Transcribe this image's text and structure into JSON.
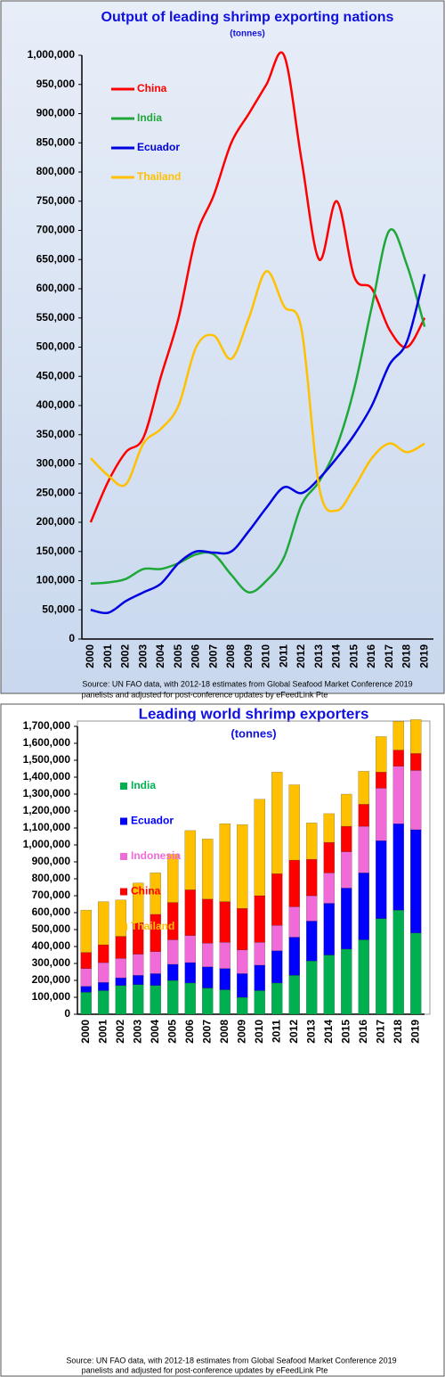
{
  "chart_data": [
    {
      "type": "line",
      "title": "Output of leading shrimp exporting nations",
      "subtitle": "(tonnes)",
      "source": [
        "Source: UN FAO data, with 2012-18 estimates from Global Seafood Market Conference 2019",
        "panelists and adjusted for post-conference updates by eFeedLink Pte"
      ],
      "categories": [
        "2000",
        "2001",
        "2002",
        "2003",
        "2004",
        "2005",
        "2006",
        "2007",
        "2008",
        "2009",
        "2010",
        "2011",
        "2012",
        "2013",
        "2014",
        "2015",
        "2016",
        "2017",
        "2018",
        "2019"
      ],
      "series": [
        {
          "name": "China",
          "color": "#ff0000",
          "values": [
            200000,
            270000,
            320000,
            345000,
            450000,
            550000,
            690000,
            760000,
            850000,
            900000,
            950000,
            1000000,
            820000,
            650000,
            750000,
            620000,
            600000,
            530000,
            500000,
            550000
          ]
        },
        {
          "name": "India",
          "color": "#1fa83a",
          "values": [
            95000,
            97000,
            103000,
            120000,
            120000,
            130000,
            145000,
            145000,
            110000,
            80000,
            100000,
            140000,
            230000,
            270000,
            330000,
            430000,
            570000,
            700000,
            640000,
            535000
          ]
        },
        {
          "name": "Ecuador",
          "color": "#0000e0",
          "values": [
            50000,
            45000,
            65000,
            80000,
            95000,
            130000,
            150000,
            148000,
            150000,
            185000,
            225000,
            260000,
            250000,
            275000,
            310000,
            350000,
            400000,
            470000,
            510000,
            625000
          ]
        },
        {
          "name": "Thailand",
          "color": "#ffc000",
          "values": [
            310000,
            280000,
            265000,
            335000,
            360000,
            400000,
            500000,
            520000,
            480000,
            550000,
            630000,
            570000,
            530000,
            260000,
            220000,
            260000,
            310000,
            335000,
            320000,
            335000
          ]
        }
      ],
      "ylim": [
        0,
        1000000
      ],
      "yticks": [
        0,
        {
          "value": 50000,
          "label": "50,000"
        },
        {
          "value": 100000,
          "label": "100,000"
        },
        {
          "value": 150000,
          "label": "150,000"
        },
        {
          "value": 200000,
          "label": "200,000"
        },
        {
          "value": 250000,
          "label": "250,000"
        },
        {
          "value": 300000,
          "label": "300,000"
        },
        {
          "value": 350000,
          "label": "350,000"
        },
        {
          "value": 400000,
          "label": "400,000"
        },
        {
          "value": 450000,
          "label": "450,000"
        },
        {
          "value": 500000,
          "label": "500,000"
        },
        {
          "value": 550000,
          "label": "550,000"
        },
        {
          "value": 600000,
          "label": "600,000"
        },
        {
          "value": 650000,
          "label": "650,000"
        },
        {
          "value": 700000,
          "label": "700,000"
        },
        {
          "value": 750000,
          "label": "750,000"
        },
        {
          "value": 800000,
          "label": "800,000"
        },
        {
          "value": 850000,
          "label": "850,000"
        },
        {
          "value": 900000,
          "label": "900,000"
        },
        {
          "value": 950000,
          "label": "950,000"
        },
        {
          "value": 1000000,
          "label": "1,000,000"
        }
      ]
    },
    {
      "type": "stacked_bar",
      "title": "Leading world shrimp exporters",
      "subtitle": "(tonnes)",
      "source": [
        "Source: UN FAO data, with 2012-18 estimates from Global Seafood Market Conference 2019",
        "panelists and adjusted for post-conference updates by eFeedLink Pte"
      ],
      "categories": [
        "2000",
        "2001",
        "2002",
        "2003",
        "2004",
        "2005",
        "2006",
        "2007",
        "2008",
        "2009",
        "2010",
        "2011",
        "2012",
        "2013",
        "2014",
        "2015",
        "2016",
        "2017",
        "2018",
        "2019"
      ],
      "series": [
        {
          "name": "India",
          "color": "#00b050",
          "values": [
            130000,
            140000,
            170000,
            175000,
            170000,
            200000,
            185000,
            155000,
            145000,
            100000,
            140000,
            185000,
            230000,
            315000,
            350000,
            385000,
            440000,
            565000,
            615000,
            480000
          ]
        },
        {
          "name": "Ecuador",
          "color": "#0000ff",
          "values": [
            35000,
            48000,
            45000,
            55000,
            70000,
            95000,
            120000,
            125000,
            125000,
            140000,
            150000,
            190000,
            225000,
            235000,
            305000,
            360000,
            395000,
            460000,
            510000,
            610000
          ]
        },
        {
          "name": "Indonesia",
          "color": "#f06ad8",
          "values": [
            105000,
            117000,
            115000,
            125000,
            130000,
            145000,
            160000,
            140000,
            155000,
            140000,
            135000,
            150000,
            180000,
            150000,
            180000,
            215000,
            275000,
            310000,
            340000,
            350000
          ]
        },
        {
          "name": "China",
          "color": "#ff0000",
          "values": [
            95000,
            105000,
            130000,
            185000,
            220000,
            220000,
            270000,
            260000,
            240000,
            245000,
            275000,
            305000,
            275000,
            215000,
            180000,
            150000,
            130000,
            95000,
            95000,
            100000
          ]
        },
        {
          "name": "Thailand",
          "color": "#ffc000",
          "values": [
            250000,
            255000,
            215000,
            235000,
            245000,
            285000,
            350000,
            355000,
            460000,
            495000,
            570000,
            600000,
            445000,
            215000,
            170000,
            190000,
            195000,
            210000,
            170000,
            200000
          ]
        }
      ],
      "ylim": [
        0,
        1700000
      ],
      "yticks": [
        0,
        {
          "value": 100000,
          "label": "100,000"
        },
        {
          "value": 200000,
          "label": "200,000"
        },
        {
          "value": 300000,
          "label": "300,000"
        },
        {
          "value": 400000,
          "label": "400,000"
        },
        {
          "value": 500000,
          "label": "500,000"
        },
        {
          "value": 600000,
          "label": "600,000"
        },
        {
          "value": 700000,
          "label": "700,000"
        },
        {
          "value": 800000,
          "label": "800,000"
        },
        {
          "value": 900000,
          "label": "900,000"
        },
        {
          "value": 1000000,
          "label": "1,000,000"
        },
        {
          "value": 1100000,
          "label": "1,100,000"
        },
        {
          "value": 1200000,
          "label": "1,200,000"
        },
        {
          "value": 1300000,
          "label": "1,300,000"
        },
        {
          "value": 1400000,
          "label": "1,400,000"
        },
        {
          "value": 1500000,
          "label": "1,500,000"
        },
        {
          "value": 1600000,
          "label": "1,600,000"
        },
        {
          "value": 1700000,
          "label": "1,700,000"
        }
      ]
    }
  ]
}
